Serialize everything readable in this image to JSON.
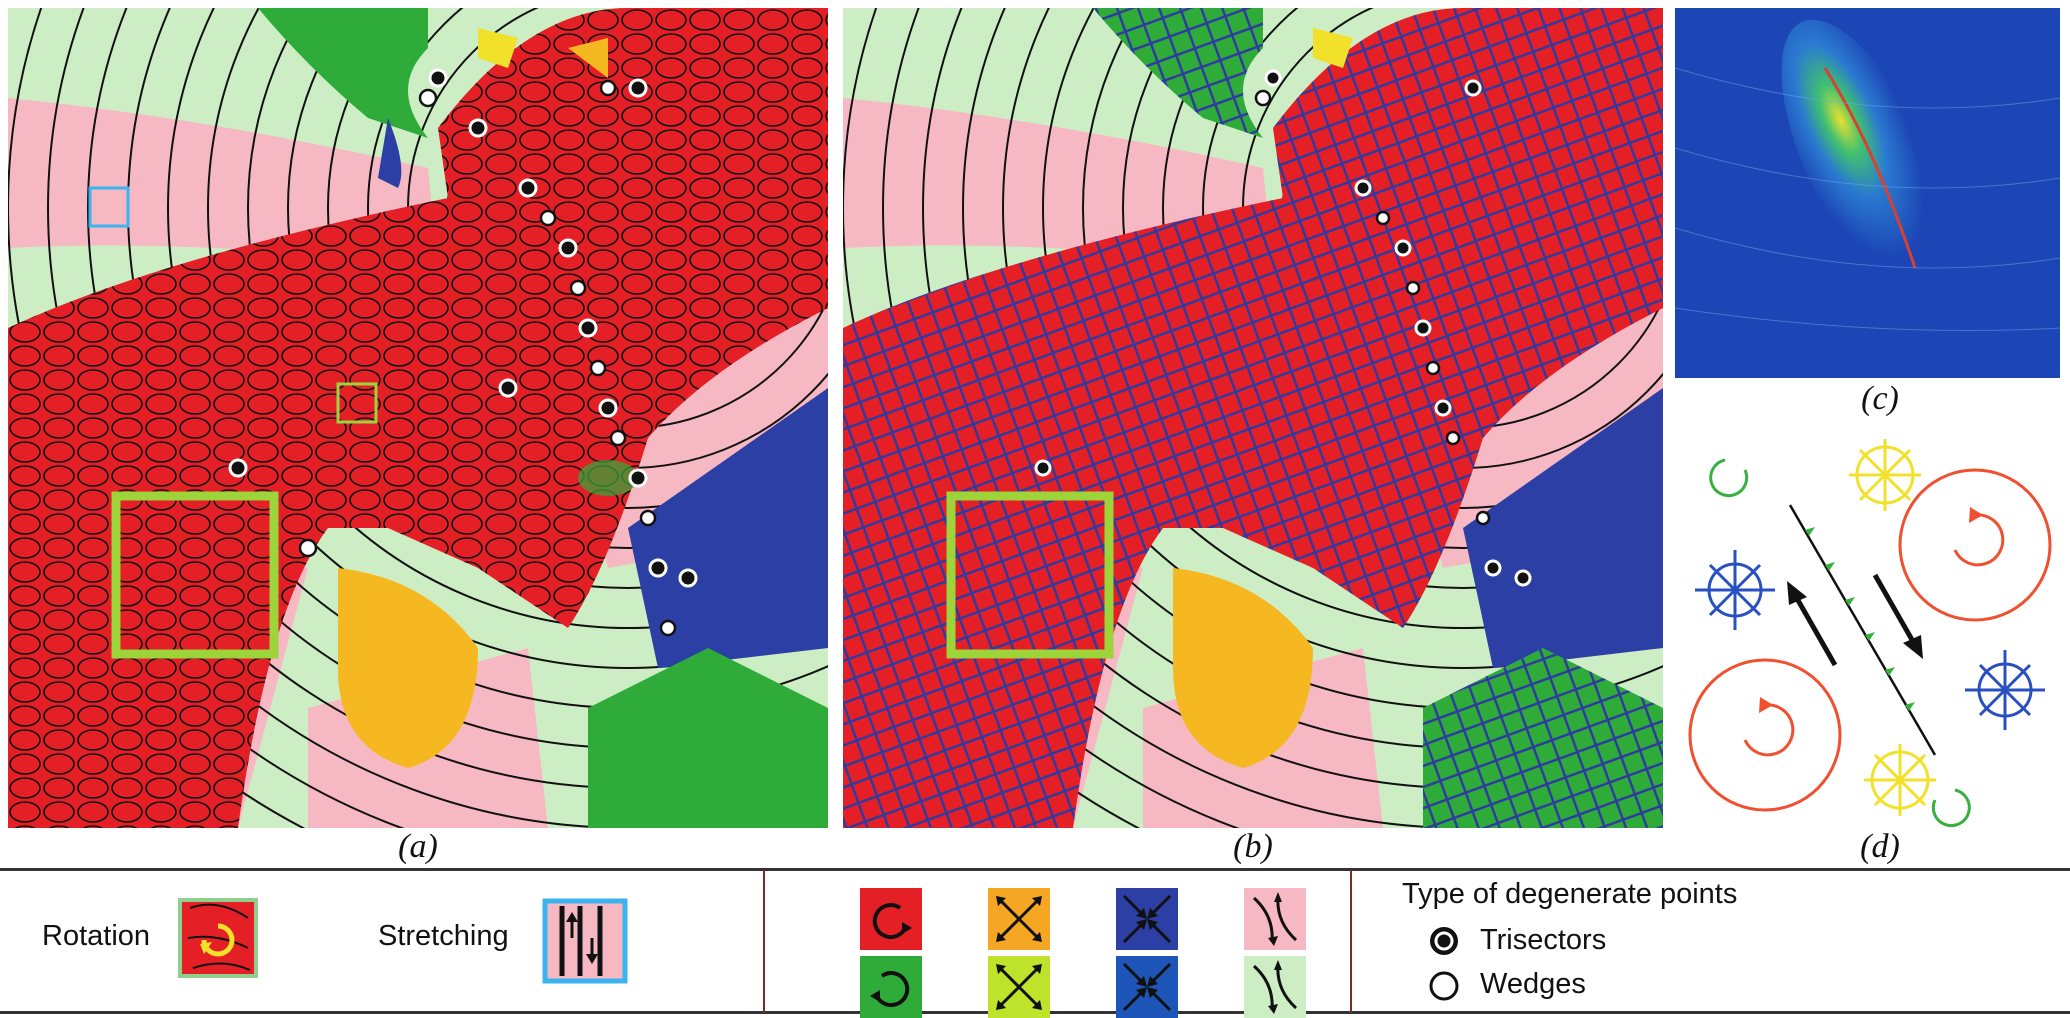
{
  "captions": {
    "a": "(a)",
    "b": "(b)",
    "c": "(c)",
    "d": "(d)"
  },
  "legend": {
    "rotation_label": "Rotation",
    "stretching_label": "Stretching",
    "degenerate_title": "Type of degenerate points",
    "trisectors_label": "Trisectors",
    "wedges_label": "Wedges",
    "swatches": [
      {
        "color": "#e41f26",
        "icon": "rotation-ccw-icon"
      },
      {
        "color": "#f5a623",
        "icon": "expansion-arrows-icon"
      },
      {
        "color": "#2b3fa4",
        "icon": "contraction-arrows-icon"
      },
      {
        "color": "#f6b9c4",
        "icon": "hyperbolic-arrows-icon"
      },
      {
        "color": "#2fab3a",
        "icon": "rotation-cw-icon"
      },
      {
        "color": "#bfe22a",
        "icon": "expansion-arrows-icon"
      },
      {
        "color": "#1d56b8",
        "icon": "contraction-arrows-icon"
      },
      {
        "color": "#cdeec4",
        "icon": "hyperbolic-arrows-icon"
      }
    ]
  },
  "colors": {
    "red": "#e41f26",
    "pink": "#f6b9c4",
    "light_green": "#cdeec4",
    "green": "#2fab3a",
    "blue": "#2b3fa4",
    "orange": "#f5b820",
    "yellow": "#f2e12b",
    "highlight": "#9cd43a",
    "cyan": "#3ab4ee"
  }
}
